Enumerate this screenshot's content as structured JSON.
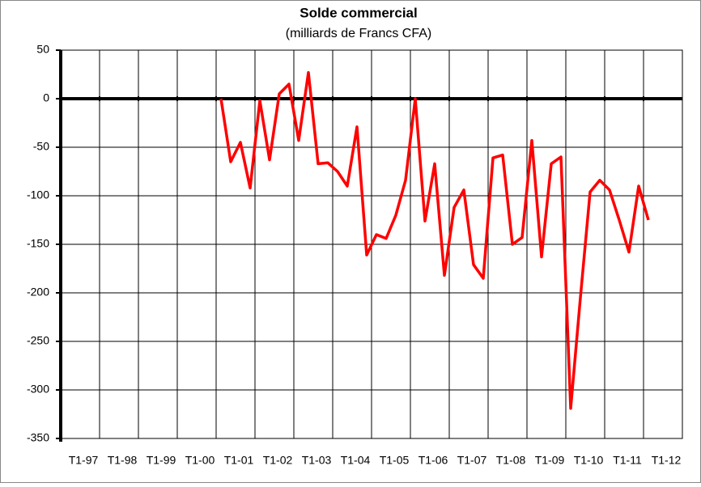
{
  "chart_data": {
    "type": "line",
    "title": "Solde commercial",
    "subtitle": "(milliards de Francs CFA)",
    "categories": [
      "T1-97",
      null,
      null,
      null,
      "T1-98",
      null,
      null,
      null,
      "T1-99",
      null,
      null,
      null,
      "T1-00",
      null,
      null,
      null,
      "T1-01",
      null,
      null,
      null,
      "T1-02",
      null,
      null,
      null,
      "T1-03",
      null,
      null,
      null,
      "T1-04",
      null,
      null,
      null,
      "T1-05",
      null,
      null,
      null,
      "T1-06",
      null,
      null,
      null,
      "T1-07",
      null,
      null,
      null,
      "T1-08",
      null,
      null,
      null,
      "T1-09",
      null,
      null,
      null,
      "T1-10",
      null,
      null,
      null,
      "T1-11",
      null,
      null,
      null,
      "T1-12",
      null,
      null,
      null
    ],
    "series": [
      {
        "name": null,
        "color": "#ff0000",
        "values": [
          null,
          null,
          null,
          null,
          null,
          null,
          null,
          null,
          null,
          null,
          null,
          null,
          null,
          null,
          null,
          null,
          0,
          -65,
          -45,
          -92,
          -2,
          -63,
          5,
          15,
          -43,
          27,
          -67,
          -66,
          -75,
          -90,
          -29,
          -161,
          -140,
          -144,
          -120,
          -84,
          0,
          -126,
          -67,
          -182,
          -112,
          -94,
          -171,
          -185,
          -61,
          -58,
          -150,
          -143,
          -43,
          -163,
          -67,
          -60,
          -319,
          -205,
          -96,
          -84,
          -94,
          -125,
          -158,
          -90,
          -125,
          null,
          null,
          null
        ]
      }
    ],
    "ylim": [
      -350,
      50
    ],
    "yticks": [
      -350,
      -300,
      -250,
      -200,
      -150,
      -100,
      -50,
      0,
      50
    ],
    "grid": true
  }
}
